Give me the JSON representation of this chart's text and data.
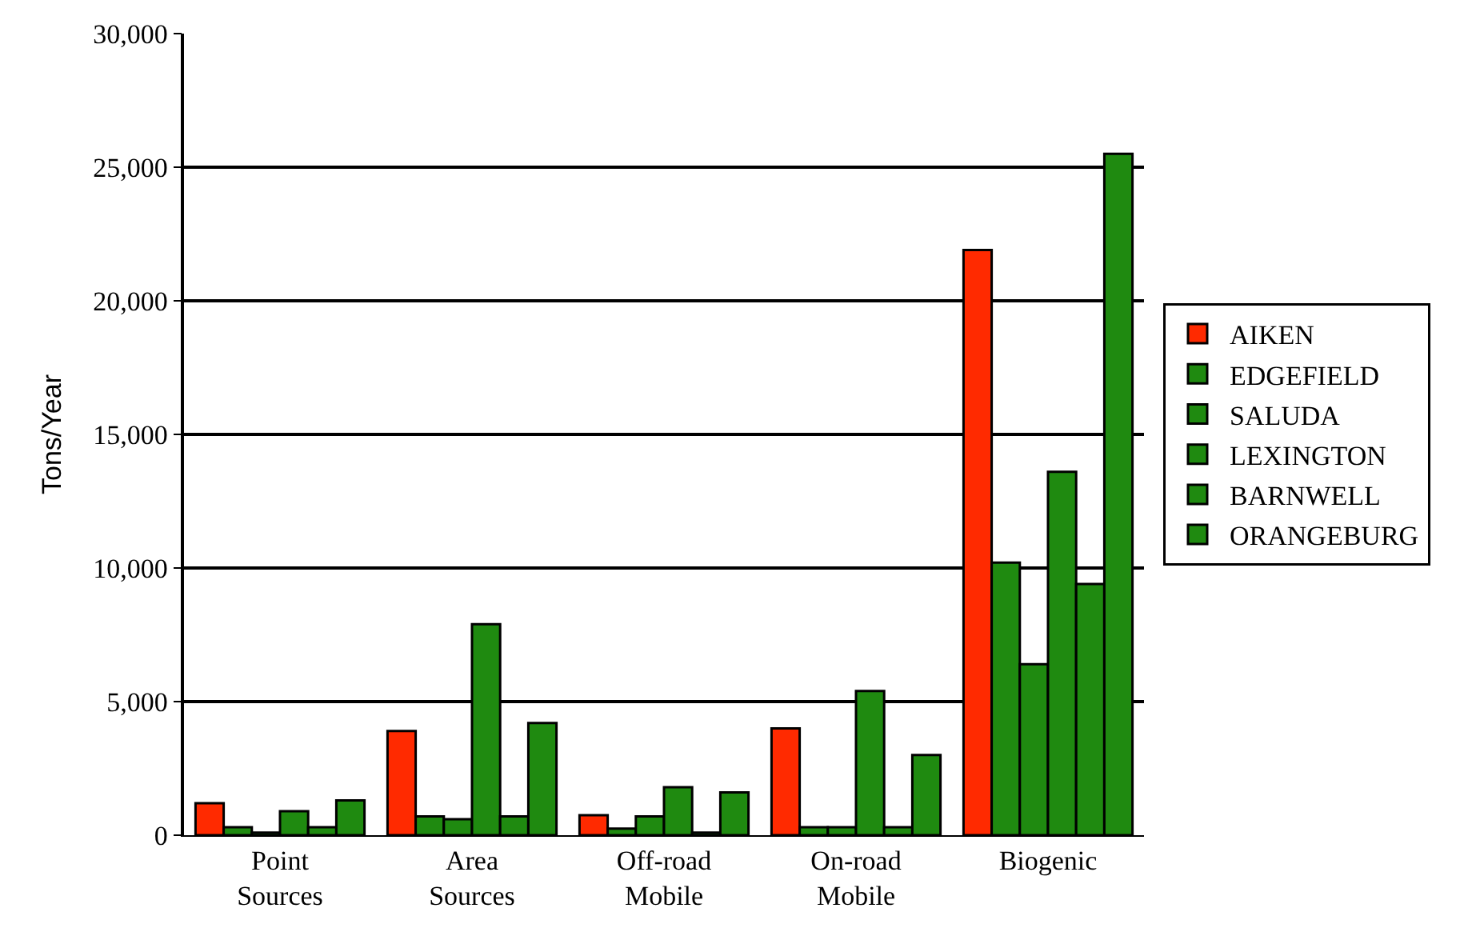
{
  "chart_data": {
    "type": "bar",
    "ylabel": "Tons/Year",
    "categories": [
      "Point\nSources",
      "Area\nSources",
      "Off-road\nMobile",
      "On-road\nMobile",
      "Biogenic"
    ],
    "series": [
      {
        "name": "AIKEN",
        "color": "#ff2a00",
        "values": [
          1200,
          3900,
          750,
          4000,
          21900
        ]
      },
      {
        "name": "EDGEFIELD",
        "color": "#1f8a10",
        "values": [
          300,
          700,
          250,
          300,
          10200
        ]
      },
      {
        "name": "SALUDA",
        "color": "#1f8a10",
        "values": [
          100,
          600,
          700,
          300,
          6400
        ]
      },
      {
        "name": "LEXINGTON",
        "color": "#1f8a10",
        "values": [
          900,
          7900,
          1800,
          5400,
          13600
        ]
      },
      {
        "name": "BARNWELL",
        "color": "#1f8a10",
        "values": [
          300,
          700,
          100,
          300,
          9400
        ]
      },
      {
        "name": "ORANGEBURG",
        "color": "#1f8a10",
        "values": [
          1300,
          4200,
          1600,
          3000,
          25500
        ]
      }
    ],
    "ylim": [
      0,
      30000
    ],
    "yticks": [
      {
        "value": 0,
        "label": "0"
      },
      {
        "value": 5000,
        "label": "5,000"
      },
      {
        "value": 10000,
        "label": "10,000"
      },
      {
        "value": 15000,
        "label": "15,000"
      },
      {
        "value": 20000,
        "label": "20,000"
      },
      {
        "value": 25000,
        "label": "25,000"
      },
      {
        "value": 30000,
        "label": "30,000"
      }
    ],
    "grid": "y",
    "legend": "right"
  }
}
